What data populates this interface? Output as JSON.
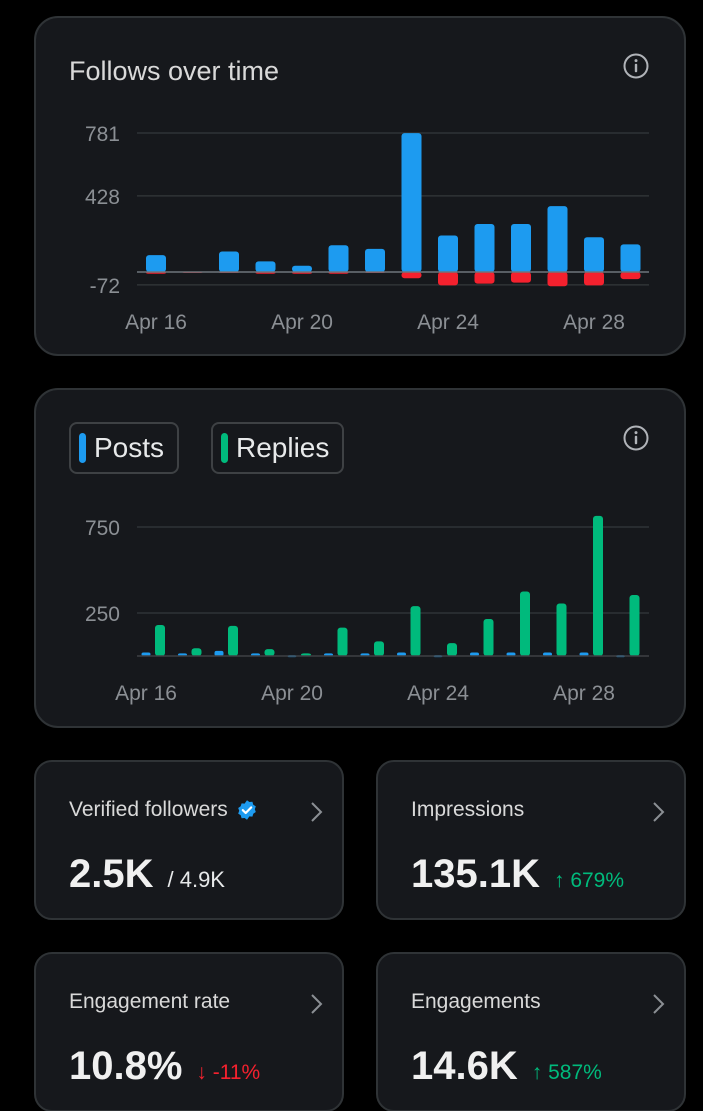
{
  "colors": {
    "background": "#000000",
    "card": "#16181c",
    "border": "#2f3336",
    "accent_blue": "#1d9bf0",
    "loss_red": "#f4212e",
    "replies_green": "#00ba7c",
    "verified_blue": "#1d9bf0"
  },
  "follows_card": {
    "title": "Follows over time",
    "info_icon": "info-icon"
  },
  "activity_card": {
    "info_icon": "info-icon",
    "legend": [
      {
        "label": "Posts",
        "color": "#1d9bf0"
      },
      {
        "label": "Replies",
        "color": "#00ba7c"
      }
    ]
  },
  "chart_data": [
    {
      "type": "bar",
      "title": "Follows over time",
      "categories": [
        "Apr 16",
        "Apr 17",
        "Apr 18",
        "Apr 19",
        "Apr 20",
        "Apr 21",
        "Apr 22",
        "Apr 23",
        "Apr 24",
        "Apr 25",
        "Apr 26",
        "Apr 27",
        "Apr 28",
        "Apr 29"
      ],
      "x_tick_labels": [
        "Apr 16",
        "Apr 20",
        "Apr 24",
        "Apr 28"
      ],
      "y_tick_labels": [
        "781",
        "428",
        "-72"
      ],
      "series": [
        {
          "values": [
            95,
            0,
            115,
            60,
            35,
            150,
            130,
            780,
            205,
            270,
            270,
            370,
            195,
            155
          ]
        },
        {
          "values": [
            -10,
            -5,
            -5,
            -10,
            -10,
            -10,
            -5,
            -35,
            -75,
            -65,
            -60,
            -80,
            -75,
            -40
          ]
        }
      ],
      "ylim": [
        -72,
        781
      ],
      "grid": true
    },
    {
      "type": "bar",
      "categories": [
        "Apr 16",
        "Apr 17",
        "Apr 18",
        "Apr 19",
        "Apr 20",
        "Apr 21",
        "Apr 22",
        "Apr 23",
        "Apr 24",
        "Apr 25",
        "Apr 26",
        "Apr 27",
        "Apr 28",
        "Apr 29"
      ],
      "x_tick_labels": [
        "Apr 16",
        "Apr 20",
        "Apr 24",
        "Apr 28"
      ],
      "y_tick_labels": [
        "750",
        "250"
      ],
      "series": [
        {
          "name": "Posts",
          "values": [
            20,
            15,
            30,
            15,
            5,
            15,
            15,
            20,
            5,
            20,
            20,
            20,
            20,
            5
          ]
        },
        {
          "name": "Replies",
          "values": [
            180,
            45,
            175,
            40,
            15,
            165,
            85,
            290,
            75,
            215,
            375,
            305,
            815,
            355
          ]
        }
      ],
      "grid": true
    }
  ],
  "stats": [
    {
      "label": "Verified followers",
      "value": "2.5K",
      "sub": "/ 4.9K",
      "badge": "verified-badge-icon"
    },
    {
      "label": "Impressions",
      "value": "135.1K",
      "change": "↑ 679%",
      "direction": "up"
    },
    {
      "label": "Engagement rate",
      "value": "10.8%",
      "change": "↓ -11%",
      "direction": "down"
    },
    {
      "label": "Engagements",
      "value": "14.6K",
      "change": "↑ 587%",
      "direction": "up"
    }
  ]
}
